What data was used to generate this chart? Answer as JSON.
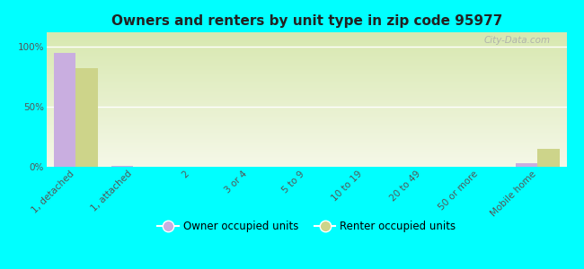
{
  "title": "Owners and renters by unit type in zip code 95977",
  "categories": [
    "1, detached",
    "1, attached",
    "2",
    "3 or 4",
    "5 to 9",
    "10 to 19",
    "20 to 49",
    "50 or more",
    "Mobile home"
  ],
  "owner_values": [
    95,
    1,
    0,
    0,
    0,
    0,
    0,
    0,
    3
  ],
  "renter_values": [
    82,
    0,
    0,
    0,
    0,
    0,
    0,
    0,
    15
  ],
  "owner_color": "#c9aee0",
  "renter_color": "#cdd48a",
  "background_color": "#00ffff",
  "grad_bottom": "#f5f8e8",
  "grad_top": "#d8e8b0",
  "yticks": [
    0,
    50,
    100
  ],
  "ylim": [
    0,
    112
  ],
  "bar_width": 0.38,
  "legend_owner": "Owner occupied units",
  "legend_renter": "Renter occupied units",
  "watermark": "City-Data.com",
  "title_fontsize": 11,
  "tick_fontsize": 7.5,
  "legend_fontsize": 8.5
}
